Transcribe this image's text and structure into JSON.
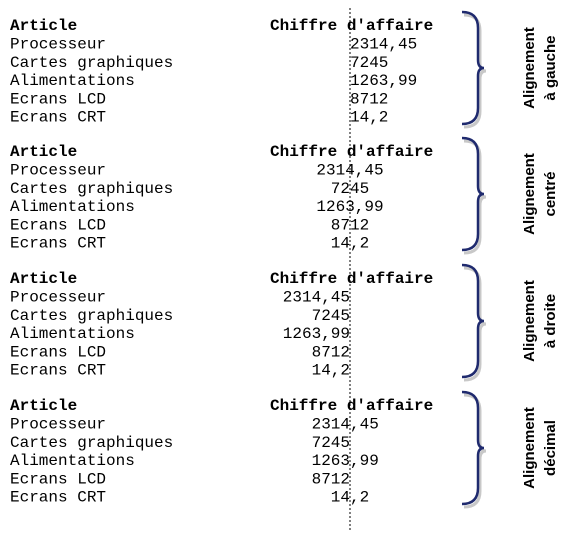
{
  "sections": [
    {
      "align": "left",
      "label": [
        "Alignement",
        "à gauche"
      ],
      "header": [
        "Article",
        "Chiffre d'affaire"
      ],
      "rows": [
        [
          "Processeur",
          "2314,45"
        ],
        [
          "Cartes graphiques",
          "7245"
        ],
        [
          "Alimentations",
          "1263,99"
        ],
        [
          "Ecrans LCD",
          "8712"
        ],
        [
          "Ecrans CRT",
          "14,2"
        ]
      ]
    },
    {
      "align": "center",
      "label": [
        "Alignement",
        "centré"
      ],
      "header": [
        "Article",
        "Chiffre d'affaire"
      ],
      "rows": [
        [
          "Processeur",
          "2314,45"
        ],
        [
          "Cartes graphiques",
          "7245"
        ],
        [
          "Alimentations",
          "1263,99"
        ],
        [
          "Ecrans LCD",
          "8712"
        ],
        [
          "Ecrans CRT",
          "14,2"
        ]
      ]
    },
    {
      "align": "right",
      "label": [
        "Alignement",
        "à droite"
      ],
      "header": [
        "Article",
        "Chiffre d'affaire"
      ],
      "rows": [
        [
          "Processeur",
          "2314,45"
        ],
        [
          "Cartes graphiques",
          "7245"
        ],
        [
          "Alimentations",
          "1263,99"
        ],
        [
          "Ecrans LCD",
          "8712"
        ],
        [
          "Ecrans CRT",
          "14,2"
        ]
      ]
    },
    {
      "align": "decimal",
      "label": [
        "Alignement",
        "décimal"
      ],
      "header": [
        "Article",
        "Chiffre d'affaire"
      ],
      "rows": [
        [
          "Processeur",
          "2314,45"
        ],
        [
          "Cartes graphiques",
          "7245"
        ],
        [
          "Alimentations",
          "1263,99"
        ],
        [
          "Ecrans LCD",
          "8712"
        ],
        [
          "Ecrans CRT",
          "14,2"
        ]
      ]
    }
  ]
}
